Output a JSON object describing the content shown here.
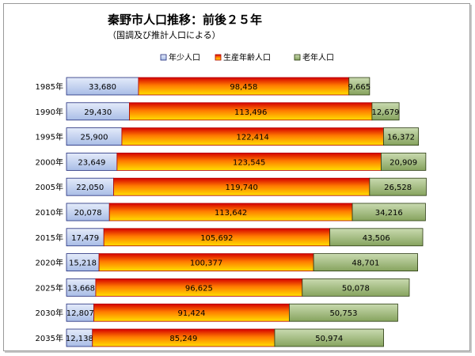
{
  "chart_data": {
    "type": "bar",
    "orientation": "horizontal",
    "stacked": true,
    "title": "秦野市人口推移：前後２５年",
    "subtitle": "（国調及び推計人口による）",
    "categories": [
      "1985年",
      "1990年",
      "1995年",
      "2000年",
      "2005年",
      "2010年",
      "2015年",
      "2020年",
      "2025年",
      "2030年",
      "2035年"
    ],
    "series": [
      {
        "name": "年少人口",
        "values": [
          33680,
          29430,
          25900,
          23649,
          22050,
          20078,
          17479,
          15218,
          13668,
          12807,
          12138
        ]
      },
      {
        "name": "生産年齢人口",
        "values": [
          98458,
          113496,
          122414,
          123545,
          119740,
          113642,
          105692,
          100377,
          96625,
          91424,
          85249
        ]
      },
      {
        "name": "老年人口",
        "values": [
          9665,
          12679,
          16372,
          20909,
          26528,
          34216,
          43506,
          48701,
          50078,
          50753,
          50974
        ]
      }
    ],
    "value_labels": [
      [
        "33,680",
        "98,458",
        "9,665"
      ],
      [
        "29,430",
        "113,496",
        "12,679"
      ],
      [
        "25,900",
        "122,414",
        "16,372"
      ],
      [
        "23,649",
        "123,545",
        "20,909"
      ],
      [
        "22,050",
        "119,740",
        "26,528"
      ],
      [
        "20,078",
        "113,642",
        "34,216"
      ],
      [
        "17,479",
        "105,692",
        "43,506"
      ],
      [
        "15,218",
        "100,377",
        "48,701"
      ],
      [
        "13,668",
        "96,625",
        "50,078"
      ],
      [
        "12,807",
        "91,424",
        "50,753"
      ],
      [
        "12,138",
        "85,249",
        "50,974"
      ]
    ],
    "legend_position": "top",
    "grid": false,
    "xlim": [
      0,
      175000
    ],
    "colors": {
      "youth_fill": "#c8d4ee",
      "youth_border": "#1f2a7a",
      "working_top": "#d40000",
      "working_mid": "#ff8a00",
      "working_bottom": "#ffd800",
      "elder_fill": "#a8bf84",
      "elder_border": "#2a3a10"
    }
  }
}
